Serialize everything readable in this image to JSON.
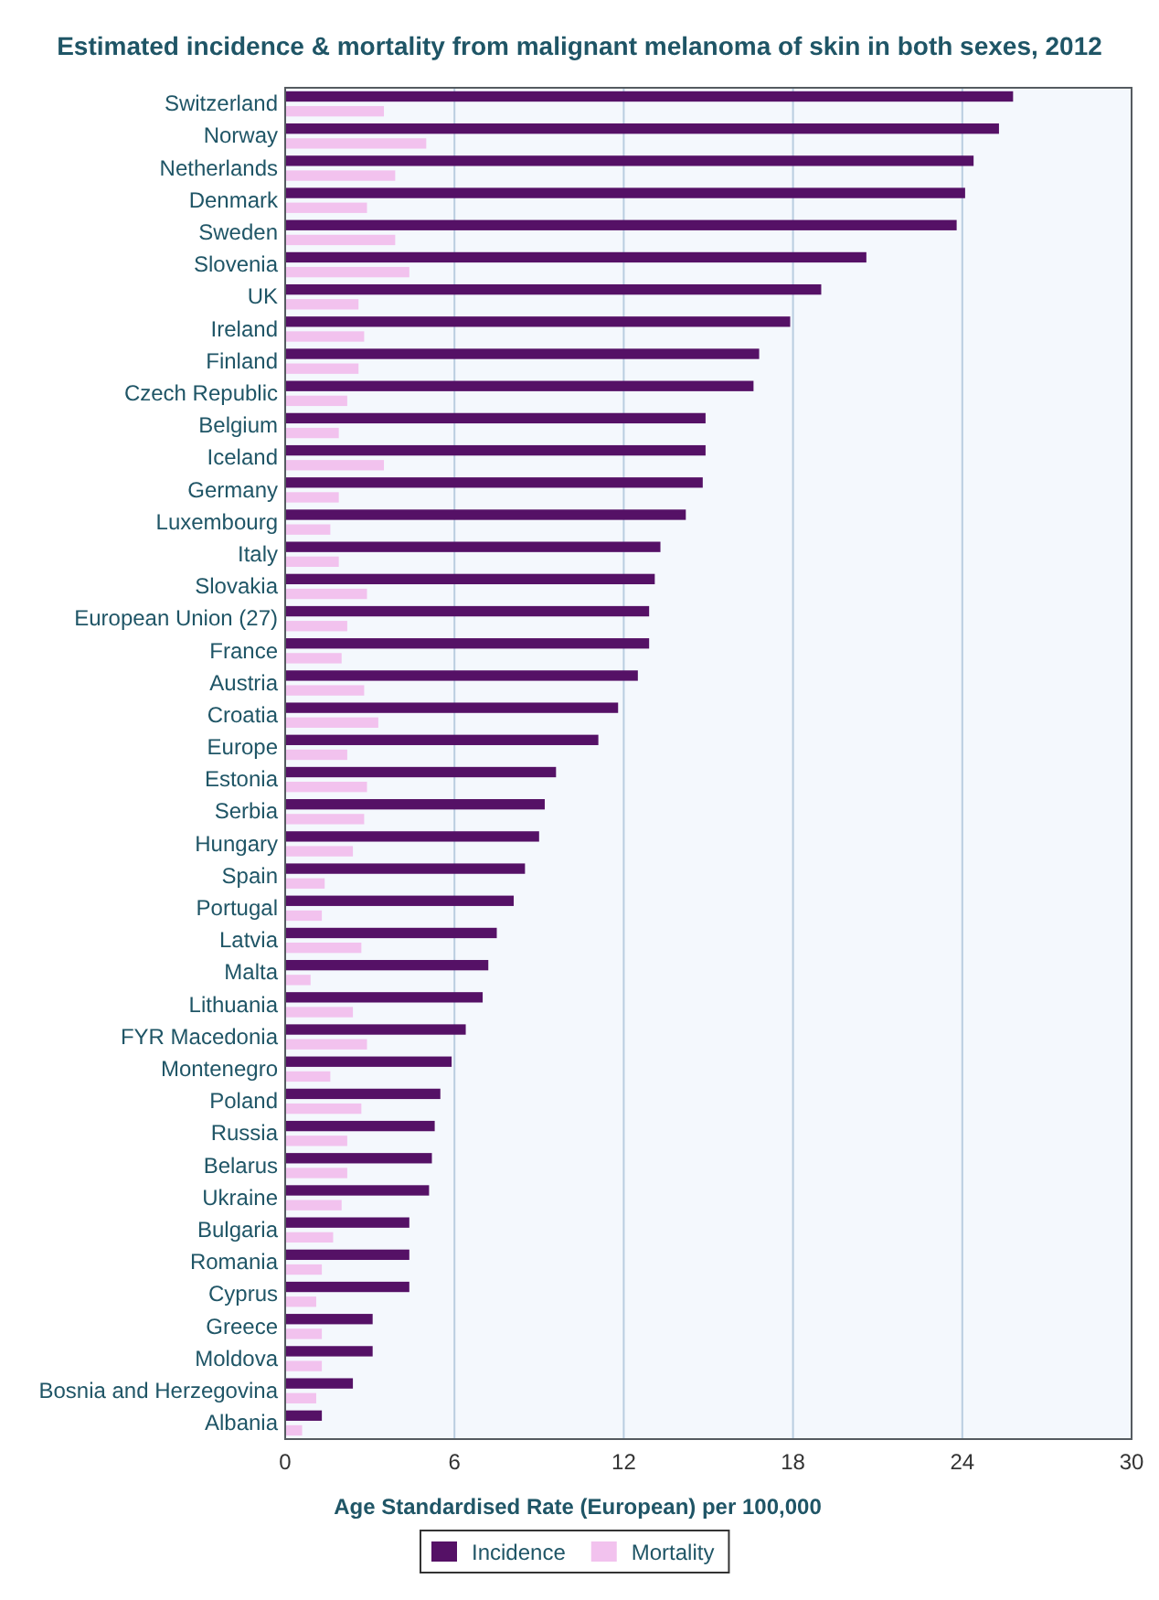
{
  "chart_data": {
    "type": "bar",
    "orientation": "horizontal",
    "title": "Estimated incidence & mortality from malignant melanoma of skin in both sexes, 2012",
    "xlabel": "Age Standardised Rate (European) per 100,000",
    "categories": [
      "Switzerland",
      "Norway",
      "Netherlands",
      "Denmark",
      "Sweden",
      "Slovenia",
      "UK",
      "Ireland",
      "Finland",
      "Czech Republic",
      "Belgium",
      "Iceland",
      "Germany",
      "Luxembourg",
      "Italy",
      "Slovakia",
      "European Union (27)",
      "France",
      "Austria",
      "Croatia",
      "Europe",
      "Estonia",
      "Serbia",
      "Hungary",
      "Spain",
      "Portugal",
      "Latvia",
      "Malta",
      "Lithuania",
      "FYR Macedonia",
      "Montenegro",
      "Poland",
      "Russia",
      "Belarus",
      "Ukraine",
      "Bulgaria",
      "Romania",
      "Cyprus",
      "Greece",
      "Moldova",
      "Bosnia and Herzegovina",
      "Albania"
    ],
    "series": [
      {
        "name": "Incidence",
        "color": "#551166",
        "values": [
          25.8,
          25.3,
          24.4,
          24.1,
          23.8,
          20.6,
          19.0,
          17.9,
          16.8,
          16.6,
          14.9,
          14.9,
          14.8,
          14.2,
          13.3,
          13.1,
          12.9,
          12.9,
          12.5,
          11.8,
          11.1,
          9.6,
          9.2,
          9.0,
          8.5,
          8.1,
          7.5,
          7.2,
          7.0,
          6.4,
          5.9,
          5.5,
          5.3,
          5.2,
          5.1,
          4.4,
          4.4,
          4.4,
          3.1,
          3.1,
          2.4,
          1.3
        ]
      },
      {
        "name": "Mortality",
        "color": "#f2c2ee",
        "values": [
          3.5,
          5.0,
          3.9,
          2.9,
          3.9,
          4.4,
          2.6,
          2.8,
          2.6,
          2.2,
          1.9,
          3.5,
          1.9,
          1.6,
          1.9,
          2.9,
          2.2,
          2.0,
          2.8,
          3.3,
          2.2,
          2.9,
          2.8,
          2.4,
          1.4,
          1.3,
          2.7,
          0.9,
          2.4,
          2.9,
          1.6,
          2.7,
          2.2,
          2.2,
          2.0,
          1.7,
          1.3,
          1.1,
          1.3,
          1.3,
          1.1,
          0.6
        ]
      }
    ],
    "xlim": [
      0,
      30
    ],
    "xticks": [
      0,
      6,
      12,
      18,
      24,
      30
    ],
    "grid": "x",
    "legend": "bottom"
  }
}
